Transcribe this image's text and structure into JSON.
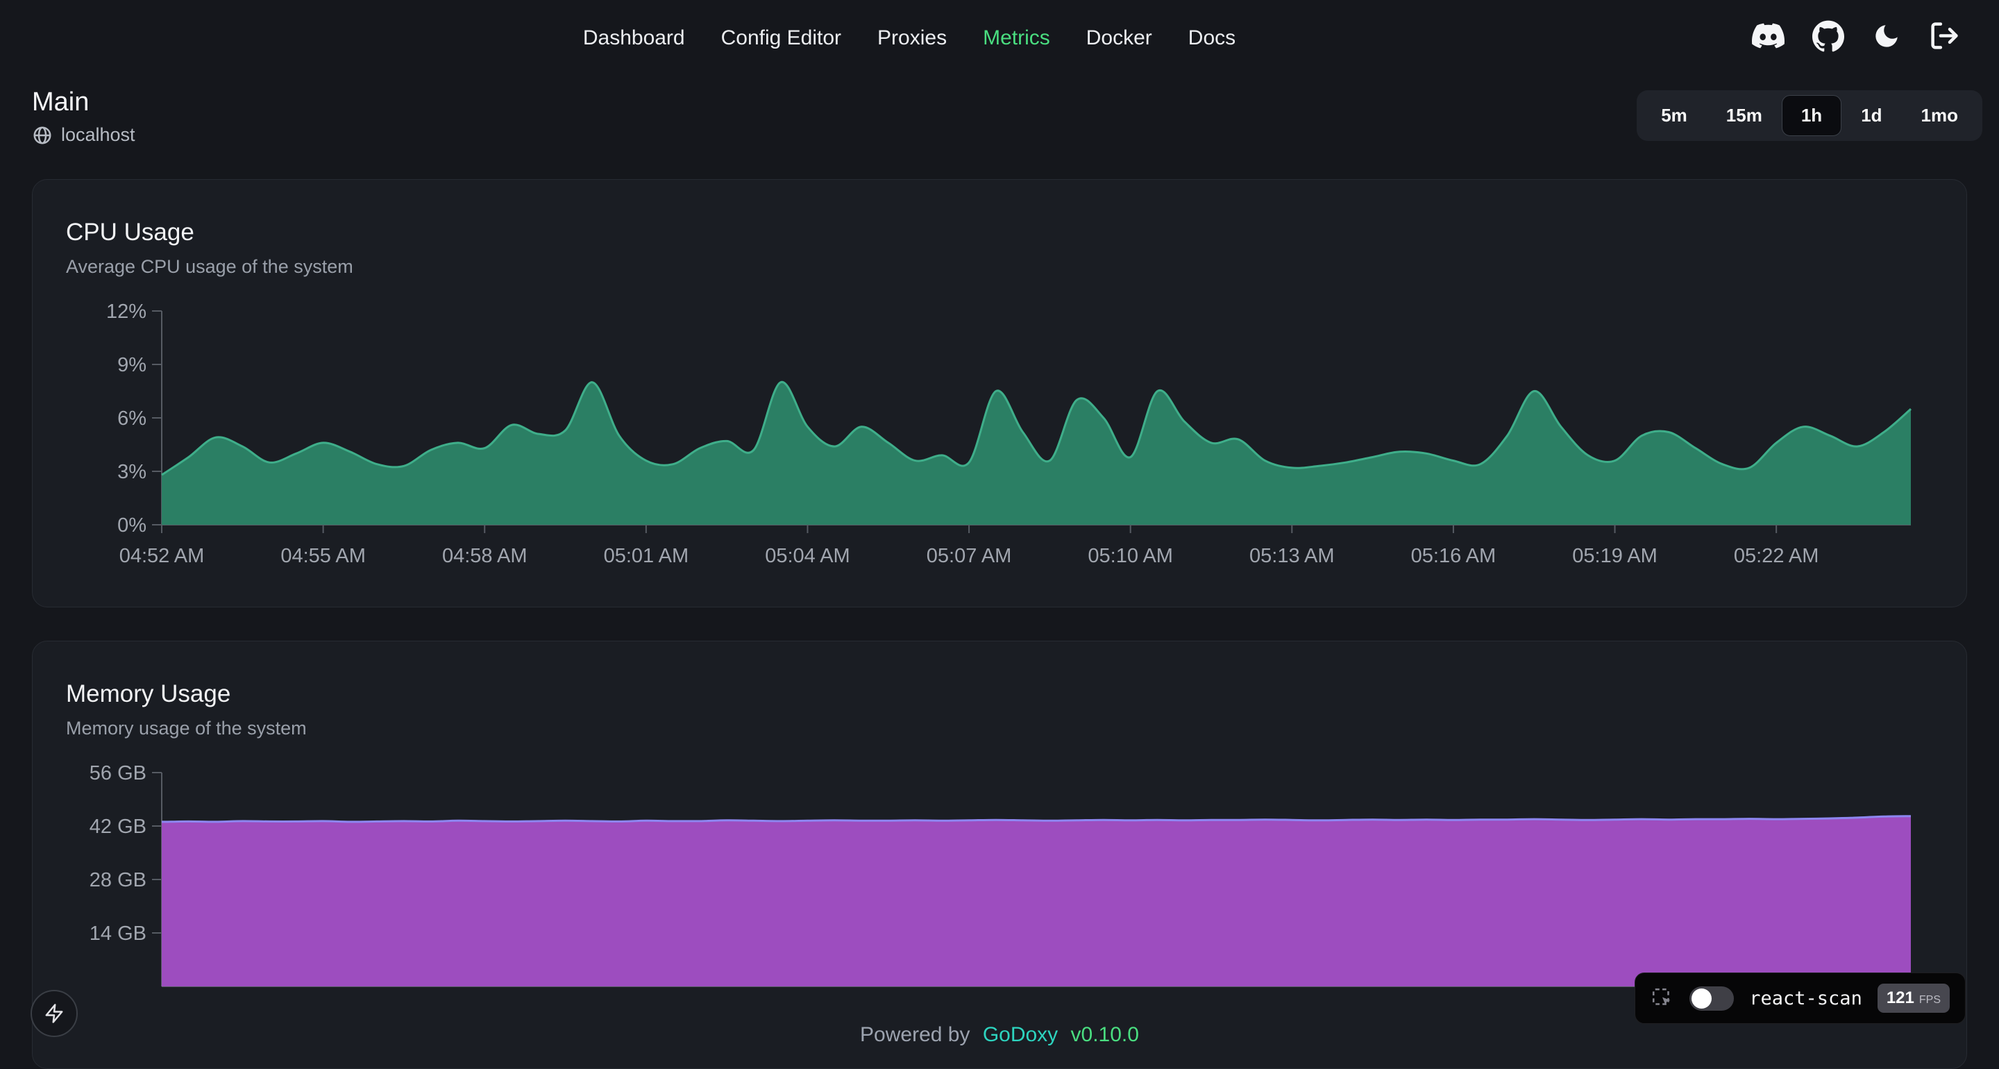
{
  "nav": {
    "items": [
      {
        "label": "Dashboard",
        "active": false
      },
      {
        "label": "Config Editor",
        "active": false
      },
      {
        "label": "Proxies",
        "active": false
      },
      {
        "label": "Metrics",
        "active": true
      },
      {
        "label": "Docker",
        "active": false
      },
      {
        "label": "Docs",
        "active": false
      }
    ]
  },
  "topbar_icons": [
    "discord-icon",
    "github-icon",
    "theme-moon-icon",
    "logout-icon"
  ],
  "header": {
    "title": "Main",
    "host": "localhost"
  },
  "time_range": {
    "options": [
      "5m",
      "15m",
      "1h",
      "1d",
      "1mo"
    ],
    "selected": "1h"
  },
  "cpu_card": {
    "title": "CPU Usage",
    "subtitle": "Average CPU usage of the system"
  },
  "memory_card": {
    "title": "Memory Usage",
    "subtitle": "Memory usage of the system"
  },
  "chart_data": [
    {
      "type": "area",
      "title": "CPU Usage",
      "unit": "%",
      "ylim": [
        0,
        12
      ],
      "y_ticks": [
        {
          "value": 0,
          "label": "0%"
        },
        {
          "value": 3,
          "label": "3%"
        },
        {
          "value": 6,
          "label": "6%"
        },
        {
          "value": 9,
          "label": "9%"
        },
        {
          "value": 12,
          "label": "12%"
        }
      ],
      "x_tick_labels": [
        "04:52 AM",
        "04:55 AM",
        "04:58 AM",
        "05:01 AM",
        "05:04 AM",
        "05:07 AM",
        "05:10 AM",
        "05:13 AM",
        "05:16 AM",
        "05:19 AM",
        "05:22 AM"
      ],
      "x_tick_every_points": 6,
      "x_interval_seconds": 30,
      "values": [
        2.8,
        3.8,
        4.9,
        4.4,
        3.5,
        4.0,
        4.6,
        4.1,
        3.4,
        3.3,
        4.2,
        4.6,
        4.3,
        5.6,
        5.1,
        5.3,
        8.0,
        5.0,
        3.6,
        3.4,
        4.3,
        4.7,
        4.2,
        8.0,
        5.5,
        4.4,
        5.5,
        4.6,
        3.6,
        3.9,
        3.5,
        7.5,
        5.2,
        3.6,
        7.0,
        6.0,
        3.8,
        7.5,
        5.8,
        4.6,
        4.8,
        3.6,
        3.2,
        3.3,
        3.5,
        3.8,
        4.1,
        4.0,
        3.6,
        3.4,
        5.0,
        7.5,
        5.5,
        3.9,
        3.6,
        5.0,
        5.2,
        4.3,
        3.4,
        3.2,
        4.6,
        5.5,
        5.0,
        4.4,
        5.2,
        6.5
      ]
    },
    {
      "type": "area",
      "title": "Memory Usage",
      "unit": "GB",
      "ylim": [
        0,
        56
      ],
      "y_ticks": [
        {
          "value": 14,
          "label": "14 GB"
        },
        {
          "value": 28,
          "label": "28 GB"
        },
        {
          "value": 42,
          "label": "42 GB"
        },
        {
          "value": 56,
          "label": "56 GB"
        }
      ],
      "x_tick_labels": [],
      "x_tick_every_points": 6,
      "x_interval_seconds": 30,
      "values": [
        43.1,
        43.2,
        43.1,
        43.3,
        43.2,
        43.2,
        43.3,
        43.1,
        43.2,
        43.3,
        43.2,
        43.4,
        43.3,
        43.2,
        43.3,
        43.4,
        43.3,
        43.2,
        43.4,
        43.3,
        43.3,
        43.5,
        43.4,
        43.3,
        43.4,
        43.5,
        43.4,
        43.4,
        43.5,
        43.4,
        43.5,
        43.6,
        43.5,
        43.4,
        43.5,
        43.6,
        43.5,
        43.6,
        43.5,
        43.6,
        43.6,
        43.7,
        43.6,
        43.5,
        43.6,
        43.7,
        43.6,
        43.7,
        43.6,
        43.7,
        43.7,
        43.8,
        43.7,
        43.6,
        43.7,
        43.8,
        43.7,
        43.8,
        43.8,
        43.9,
        43.8,
        43.9,
        44.0,
        44.2,
        44.5,
        44.6
      ]
    }
  ],
  "footer": {
    "prefix": "Powered by",
    "brand": "GoDoxy",
    "version": "v0.10.0"
  },
  "react_scan": {
    "label": "react-scan",
    "fps": "121",
    "fps_unit": "FPS",
    "toggle_state": "off"
  },
  "colors": {
    "accent_green": "#4ade80",
    "brand_teal": "#2dd4bf",
    "cpu_fill": "#2b7f64",
    "cpu_stroke": "#3fae8a",
    "mem_fill": "#9d4dbf",
    "mem_stroke": "#8d86f0",
    "axis_text": "#a1a6af",
    "card_bg": "#1a1d23",
    "page_bg": "#15171c"
  }
}
